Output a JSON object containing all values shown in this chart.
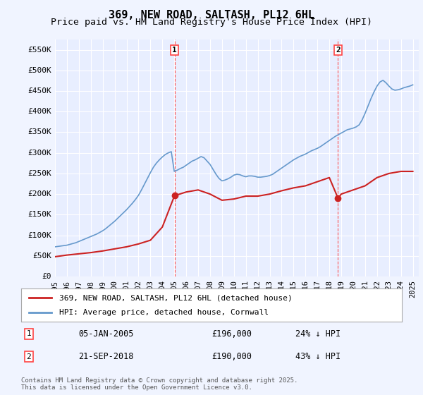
{
  "title": "369, NEW ROAD, SALTASH, PL12 6HL",
  "subtitle": "Price paid vs. HM Land Registry's House Price Index (HPI)",
  "xlabel": "",
  "ylabel": "",
  "ylim": [
    0,
    575000
  ],
  "xlim_start": 1995.0,
  "xlim_end": 2025.5,
  "yticks": [
    0,
    50000,
    100000,
    150000,
    200000,
    250000,
    300000,
    350000,
    400000,
    450000,
    500000,
    550000
  ],
  "ytick_labels": [
    "£0",
    "£50K",
    "£100K",
    "£150K",
    "£200K",
    "£250K",
    "£300K",
    "£350K",
    "£400K",
    "£450K",
    "£500K",
    "£550K"
  ],
  "xticks": [
    1995,
    1996,
    1997,
    1998,
    1999,
    2000,
    2001,
    2002,
    2003,
    2004,
    2005,
    2006,
    2007,
    2008,
    2009,
    2010,
    2011,
    2012,
    2013,
    2014,
    2015,
    2016,
    2017,
    2018,
    2019,
    2020,
    2021,
    2022,
    2023,
    2024,
    2025
  ],
  "background_color": "#f0f4ff",
  "plot_bg_color": "#e8eeff",
  "grid_color": "#ffffff",
  "hpi_color": "#6699cc",
  "price_color": "#cc2222",
  "vline_color": "#ff4444",
  "marker1_x": 2005.02,
  "marker1_y": 196000,
  "marker1_label": "1",
  "marker1_date": "05-JAN-2005",
  "marker1_price": "£196,000",
  "marker1_hpi": "24% ↓ HPI",
  "marker2_x": 2018.73,
  "marker2_y": 190000,
  "marker2_label": "2",
  "marker2_date": "21-SEP-2018",
  "marker2_price": "£190,000",
  "marker2_hpi": "43% ↓ HPI",
  "legend_line1": "369, NEW ROAD, SALTASH, PL12 6HL (detached house)",
  "legend_line2": "HPI: Average price, detached house, Cornwall",
  "footnote": "Contains HM Land Registry data © Crown copyright and database right 2025.\nThis data is licensed under the Open Government Licence v3.0.",
  "title_fontsize": 11,
  "subtitle_fontsize": 9.5,
  "tick_fontsize": 8,
  "hpi_data_x": [
    1995.0,
    1995.25,
    1995.5,
    1995.75,
    1996.0,
    1996.25,
    1996.5,
    1996.75,
    1997.0,
    1997.25,
    1997.5,
    1997.75,
    1998.0,
    1998.25,
    1998.5,
    1998.75,
    1999.0,
    1999.25,
    1999.5,
    1999.75,
    2000.0,
    2000.25,
    2000.5,
    2000.75,
    2001.0,
    2001.25,
    2001.5,
    2001.75,
    2002.0,
    2002.25,
    2002.5,
    2002.75,
    2003.0,
    2003.25,
    2003.5,
    2003.75,
    2004.0,
    2004.25,
    2004.5,
    2004.75,
    2005.0,
    2005.25,
    2005.5,
    2005.75,
    2006.0,
    2006.25,
    2006.5,
    2006.75,
    2007.0,
    2007.25,
    2007.5,
    2007.75,
    2008.0,
    2008.25,
    2008.5,
    2008.75,
    2009.0,
    2009.25,
    2009.5,
    2009.75,
    2010.0,
    2010.25,
    2010.5,
    2010.75,
    2011.0,
    2011.25,
    2011.5,
    2011.75,
    2012.0,
    2012.25,
    2012.5,
    2012.75,
    2013.0,
    2013.25,
    2013.5,
    2013.75,
    2014.0,
    2014.25,
    2014.5,
    2014.75,
    2015.0,
    2015.25,
    2015.5,
    2015.75,
    2016.0,
    2016.25,
    2016.5,
    2016.75,
    2017.0,
    2017.25,
    2017.5,
    2017.75,
    2018.0,
    2018.25,
    2018.5,
    2018.75,
    2019.0,
    2019.25,
    2019.5,
    2019.75,
    2020.0,
    2020.25,
    2020.5,
    2020.75,
    2021.0,
    2021.25,
    2021.5,
    2021.75,
    2022.0,
    2022.25,
    2022.5,
    2022.75,
    2023.0,
    2023.25,
    2023.5,
    2023.75,
    2024.0,
    2024.25,
    2024.5,
    2024.75,
    2025.0
  ],
  "hpi_data_y": [
    72000,
    73000,
    74000,
    75000,
    76000,
    78000,
    80000,
    82000,
    85000,
    88000,
    91000,
    94000,
    97000,
    100000,
    103000,
    107000,
    111000,
    116000,
    122000,
    128000,
    134000,
    141000,
    148000,
    155000,
    162000,
    170000,
    178000,
    187000,
    197000,
    210000,
    224000,
    238000,
    252000,
    265000,
    275000,
    283000,
    290000,
    296000,
    300000,
    303000,
    255000,
    258000,
    262000,
    265000,
    270000,
    275000,
    280000,
    283000,
    287000,
    291000,
    288000,
    280000,
    272000,
    260000,
    248000,
    238000,
    232000,
    234000,
    237000,
    241000,
    246000,
    248000,
    247000,
    244000,
    242000,
    244000,
    244000,
    243000,
    241000,
    241000,
    242000,
    243000,
    245000,
    248000,
    253000,
    258000,
    263000,
    268000,
    273000,
    278000,
    283000,
    287000,
    291000,
    294000,
    297000,
    301000,
    305000,
    308000,
    311000,
    315000,
    320000,
    325000,
    330000,
    335000,
    340000,
    344000,
    348000,
    352000,
    356000,
    358000,
    360000,
    363000,
    368000,
    380000,
    396000,
    414000,
    432000,
    448000,
    462000,
    472000,
    476000,
    470000,
    462000,
    455000,
    452000,
    453000,
    455000,
    458000,
    460000,
    462000,
    465000
  ],
  "price_data_x": [
    1995.0,
    1995.5,
    1996.0,
    1997.0,
    1998.0,
    1999.0,
    2000.0,
    2001.0,
    2002.0,
    2003.0,
    2004.0,
    2005.02,
    2006.0,
    2007.0,
    2008.0,
    2009.0,
    2010.0,
    2011.0,
    2012.0,
    2013.0,
    2014.0,
    2015.0,
    2016.0,
    2017.0,
    2018.0,
    2018.73,
    2019.0,
    2020.0,
    2021.0,
    2022.0,
    2023.0,
    2024.0,
    2025.0
  ],
  "price_data_y": [
    48000,
    50000,
    52000,
    55000,
    58000,
    62000,
    67000,
    72000,
    79000,
    88000,
    120000,
    196000,
    205000,
    210000,
    200000,
    185000,
    188000,
    195000,
    195000,
    200000,
    208000,
    215000,
    220000,
    230000,
    240000,
    190000,
    200000,
    210000,
    220000,
    240000,
    250000,
    255000,
    255000
  ]
}
